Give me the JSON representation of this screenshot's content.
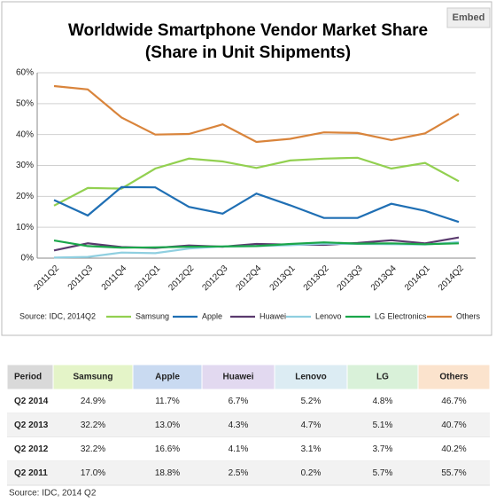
{
  "embed_button": "Embed",
  "chart_data": {
    "type": "line",
    "title": "Worldwide Smartphone Vendor Market Share",
    "subtitle": "(Share in Unit Shipments)",
    "source": "Source: IDC, 2014Q2",
    "categories": [
      "2011Q2",
      "2011Q3",
      "2011Q4",
      "2012Q1",
      "2012Q2",
      "2012Q3",
      "2012Q4",
      "2013Q1",
      "2013Q2",
      "2013Q3",
      "2013Q4",
      "2014Q1",
      "2014Q2"
    ],
    "ylim": [
      0,
      60
    ],
    "yticks": [
      {
        "value": 0,
        "label": "0%"
      },
      {
        "value": 10,
        "label": "10%"
      },
      {
        "value": 20,
        "label": "20%"
      },
      {
        "value": 30,
        "label": "30%"
      },
      {
        "value": 40,
        "label": "40%"
      },
      {
        "value": 50,
        "label": "50%"
      },
      {
        "value": 60,
        "label": "60%"
      }
    ],
    "grid": true,
    "series": [
      {
        "name": "Samsung",
        "color": "#92d050",
        "values": [
          17.0,
          22.7,
          22.5,
          29.0,
          32.2,
          31.3,
          29.2,
          31.6,
          32.2,
          32.5,
          29.0,
          30.8,
          24.9
        ]
      },
      {
        "name": "Apple",
        "color": "#1f6fb4",
        "values": [
          18.8,
          13.8,
          23.0,
          22.9,
          16.6,
          14.4,
          20.9,
          17.1,
          13.0,
          13.0,
          17.6,
          15.3,
          11.7
        ]
      },
      {
        "name": "Huawei",
        "color": "#5a3a6e",
        "values": [
          2.5,
          4.8,
          3.6,
          3.3,
          4.1,
          3.7,
          4.6,
          4.4,
          4.3,
          4.9,
          5.8,
          4.8,
          6.7
        ]
      },
      {
        "name": "Lenovo",
        "color": "#8fcfe0",
        "values": [
          0.2,
          0.4,
          1.8,
          1.6,
          3.1,
          3.8,
          3.9,
          4.2,
          4.7,
          4.6,
          4.5,
          4.4,
          5.2
        ]
      },
      {
        "name": "LG Electronics",
        "color": "#1aa64a",
        "values": [
          5.7,
          3.9,
          3.4,
          3.5,
          3.7,
          3.8,
          3.9,
          4.6,
          5.1,
          4.7,
          4.8,
          4.5,
          4.8
        ]
      },
      {
        "name": "Others",
        "color": "#d9843b",
        "values": [
          55.7,
          54.6,
          45.5,
          40.0,
          40.2,
          43.3,
          37.6,
          38.6,
          40.7,
          40.5,
          38.2,
          40.4,
          46.7
        ]
      }
    ]
  },
  "table": {
    "header": [
      "Period",
      "Samsung",
      "Apple",
      "Huawei",
      "Lenovo",
      "LG",
      "Others"
    ],
    "header_colors": [
      "#d9d9d9",
      "#e4f4c8",
      "#c9daf1",
      "#e2d9f0",
      "#dcecf3",
      "#d9f1d9",
      "#fbe3cd"
    ],
    "rows": [
      [
        "Q2 2014",
        "24.9%",
        "11.7%",
        "6.7%",
        "5.2%",
        "4.8%",
        "46.7%"
      ],
      [
        "Q2 2013",
        "32.2%",
        "13.0%",
        "4.3%",
        "4.7%",
        "5.1%",
        "40.7%"
      ],
      [
        "Q2 2012",
        "32.2%",
        "16.6%",
        "4.1%",
        "3.1%",
        "3.7%",
        "40.2%"
      ],
      [
        "Q2 2011",
        "17.0%",
        "18.8%",
        "2.5%",
        "0.2%",
        "5.7%",
        "55.7%"
      ]
    ],
    "source": "Source: IDC, 2014 Q2"
  }
}
